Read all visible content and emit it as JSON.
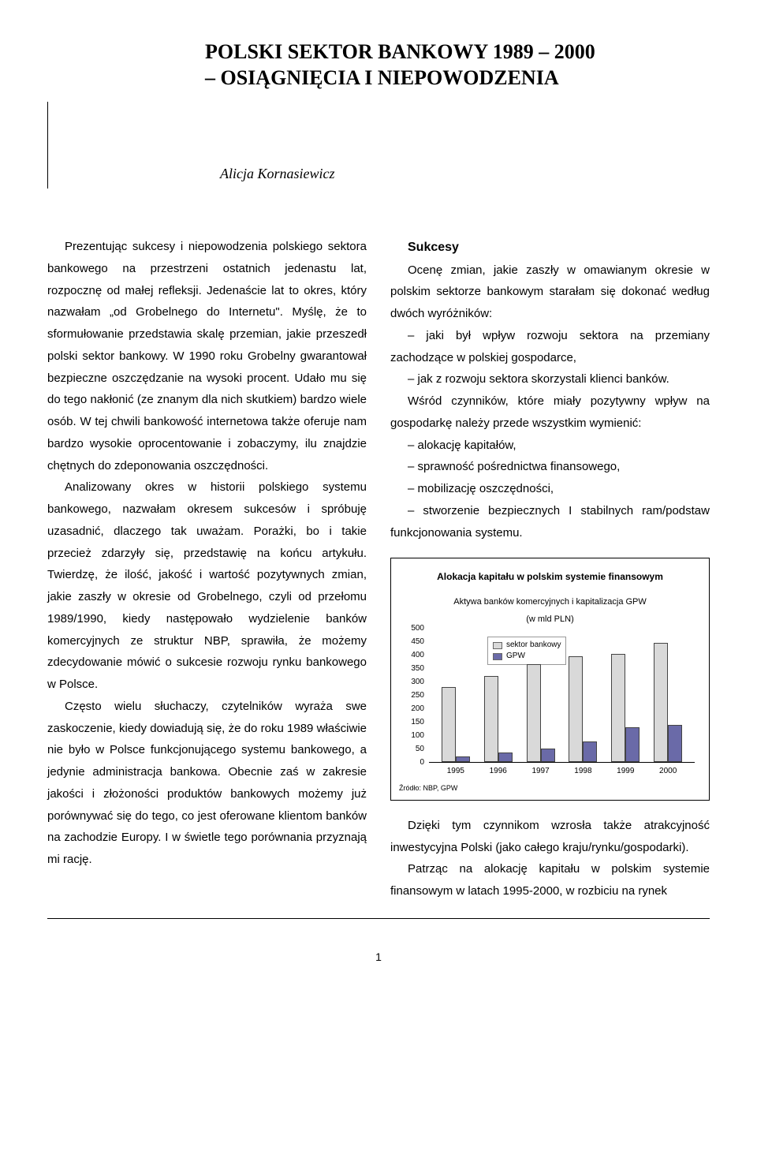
{
  "title": {
    "line1": "POLSKI SEKTOR BANKOWY 1989 – 2000",
    "line2": "– OSIĄGNIĘCIA I NIEPOWODZENIA"
  },
  "author": "Alicja Kornasiewicz",
  "left_col": {
    "p1": "Prezentując sukcesy i niepowodzenia polskiego sektora bankowego na przestrzeni ostatnich jedenastu lat, rozpocznę od małej refleksji. Jedenaście lat to okres, który nazwałam „od Grobelnego do Internetu\". Myślę, że to sformułowanie przedstawia skalę przemian, jakie przeszedł polski sektor bankowy. W 1990 roku Grobelny gwarantował bezpieczne oszczędzanie na wysoki procent. Udało mu się do tego nakłonić (ze znanym dla nich skutkiem) bardzo wiele osób. W tej chwili bankowość internetowa także oferuje nam bardzo wysokie oprocentowanie i zobaczymy, ilu znajdzie chętnych do zdeponowania oszczędności.",
    "p2": "Analizowany okres w historii polskiego systemu bankowego, nazwałam okresem sukcesów i spróbuję uzasadnić, dlaczego tak uważam. Porażki, bo i takie przecież zdarzyły się, przedstawię na końcu artykułu. Twierdzę, że ilość, jakość i wartość pozytywnych zmian, jakie zaszły w okresie od Grobelnego, czyli od przełomu 1989/1990, kiedy następowało wydzielenie banków komercyjnych ze struktur NBP, sprawiła, że możemy zdecydowanie mówić o sukcesie rozwoju rynku bankowego w Polsce.",
    "p3": "Często wielu słuchaczy, czytelników wyraża swe zaskoczenie, kiedy dowiadują się, że do roku 1989 właściwie nie było w Polsce funkcjonującego systemu bankowego, a jedynie administracja bankowa. Obecnie zaś w zakresie jakości i złożoności produktów bankowych możemy już porównywać się do tego, co jest oferowane klientom banków na zachodzie Europy. I w świetle tego porównania przyznają mi rację."
  },
  "right_col": {
    "section_head": "Sukcesy",
    "p1": "Ocenę zmian, jakie zaszły w omawianym okresie w polskim sektorze bankowym starałam się dokonać według dwóch wyróżników:",
    "b1": "– jaki był wpływ rozwoju sektora na przemiany zachodzące w polskiej gospodarce,",
    "b2": "– jak z rozwoju sektora skorzystali klienci banków.",
    "p2": "Wśród czynników, które miały pozytywny wpływ na gospodarkę należy przede wszystkim wymienić:",
    "b3": "– alokację kapitałów,",
    "b4": "– sprawność pośrednictwa finansowego,",
    "b5": "– mobilizację oszczędności,",
    "b6": "– stworzenie bezpiecznych I stabilnych ram/podstaw funkcjonowania systemu.",
    "p3": "Dzięki tym czynnikom wzrosła także atrakcyjność inwestycyjna Polski (jako całego kraju/rynku/gospodarki).",
    "p4": "Patrząc na alokację kapitału w polskim systemie finansowym w latach 1995-2000, w rozbiciu na rynek"
  },
  "chart": {
    "title": "Alokacja kapitału w polskim systemie finansowym",
    "subtitle1": "Aktywa banków komercyjnych i kapitalizacja GPW",
    "subtitle2": "(w mld PLN)",
    "legend": {
      "s1": "sektor bankowy",
      "s2": "GPW"
    },
    "colors": {
      "bank": "#d9d9d9",
      "gpw": "#6a6aa8",
      "border": "#555555"
    },
    "ylim": [
      0,
      500
    ],
    "ytick_step": 50,
    "yticks": [
      "0",
      "50",
      "100",
      "150",
      "200",
      "250",
      "300",
      "350",
      "400",
      "450",
      "500"
    ],
    "years": [
      "1995",
      "1996",
      "1997",
      "1998",
      "1999",
      "2000"
    ],
    "bank_values": [
      280,
      320,
      365,
      395,
      405,
      445
    ],
    "gpw_values": [
      20,
      35,
      50,
      78,
      130,
      140
    ],
    "source": "Źródło: NBP, GPW"
  },
  "page_number": "1"
}
